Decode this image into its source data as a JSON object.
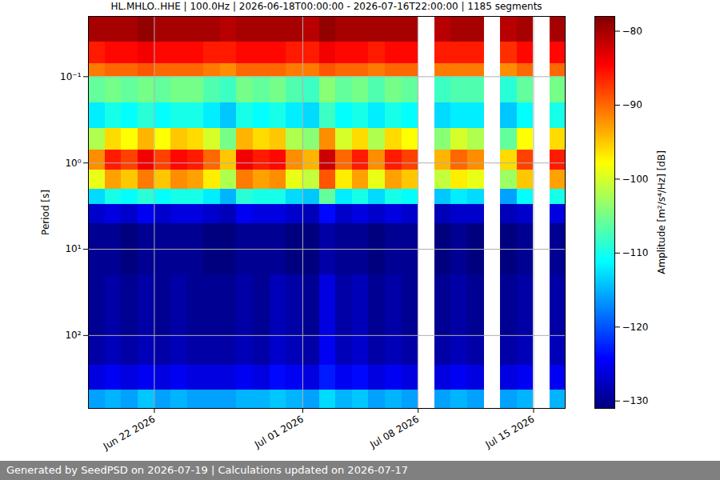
{
  "chart_data": {
    "type": "heatmap",
    "title": "HL.MHLO..HHE | 100.0Hz | 2026-06-18T00:00:00 - 2026-07-16T22:00:00 | 1185 segments",
    "caption": "Generated by SeedPSD on 2026-07-19 | Calculations updated on 2026-07-17",
    "ylabel": "Period [s]",
    "log": "y",
    "grid": true,
    "x": [
      "2026-06-18",
      "2026-06-19",
      "2026-06-20",
      "2026-06-21",
      "2026-06-22",
      "2026-06-23",
      "2026-06-24",
      "2026-06-25",
      "2026-06-26",
      "2026-06-27",
      "2026-06-28",
      "2026-06-29",
      "2026-06-30",
      "2026-07-01",
      "2026-07-02",
      "2026-07-03",
      "2026-07-04",
      "2026-07-05",
      "2026-07-06",
      "2026-07-07",
      "2026-07-08",
      "2026-07-09",
      "2026-07-10",
      "2026-07-11",
      "2026-07-12",
      "2026-07-13",
      "2026-07-14",
      "2026-07-15",
      "2026-07-16"
    ],
    "periods": [
      0.02,
      0.04,
      0.07,
      0.1,
      0.2,
      0.4,
      0.7,
      1.2,
      2,
      3,
      5,
      20,
      100,
      220,
      430,
      700
    ],
    "values": [
      [
        -80,
        -80,
        -80,
        -79,
        -80,
        -80,
        -80,
        -80,
        -81,
        -80,
        -80,
        -80,
        -80,
        -81,
        -79,
        -80,
        -80,
        -80,
        -80,
        -80,
        null,
        -81,
        -80,
        -80,
        null,
        -81,
        -80,
        null,
        -80
      ],
      [
        -86,
        -85,
        -85,
        -84,
        -85,
        -85,
        -85,
        -86,
        -86,
        -85,
        -85,
        -85,
        -86,
        -86,
        -84,
        -85,
        -85,
        -86,
        -85,
        -85,
        null,
        -86,
        -86,
        -86,
        null,
        -87,
        -85,
        null,
        -85
      ],
      [
        -91,
        -90,
        -90,
        -89,
        -90,
        -90,
        -90,
        -91,
        -92,
        -90,
        -90,
        -90,
        -91,
        -91,
        -89,
        -90,
        -90,
        -91,
        -90,
        -90,
        null,
        -91,
        -91,
        -91,
        null,
        -92,
        -90,
        null,
        -90
      ],
      [
        -106,
        -105,
        -106,
        -105,
        -106,
        -105,
        -105,
        -107,
        -108,
        -105,
        -106,
        -105,
        -107,
        -108,
        -104,
        -106,
        -105,
        -107,
        -105,
        -106,
        null,
        -108,
        -107,
        -107,
        null,
        -109,
        -106,
        null,
        -105
      ],
      [
        -112,
        -110,
        -111,
        -109,
        -111,
        -110,
        -110,
        -112,
        -114,
        -110,
        -111,
        -110,
        -112,
        -113,
        -108,
        -111,
        -110,
        -112,
        -110,
        -111,
        null,
        -113,
        -112,
        -112,
        null,
        -114,
        -111,
        null,
        -110
      ],
      [
        -102,
        -96,
        -98,
        -94,
        -98,
        -95,
        -96,
        -100,
        -105,
        -94,
        -96,
        -95,
        -102,
        -104,
        -92,
        -100,
        -96,
        -102,
        -96,
        -98,
        null,
        -104,
        -100,
        -102,
        null,
        -106,
        -98,
        null,
        -96
      ],
      [
        -92,
        -86,
        -88,
        -84,
        -88,
        -85,
        -86,
        -90,
        -95,
        -84,
        -86,
        -85,
        -92,
        -94,
        -82,
        -90,
        -86,
        -92,
        -86,
        -88,
        null,
        -94,
        -90,
        -92,
        null,
        -96,
        -88,
        null,
        -86
      ],
      [
        -99,
        -93,
        -95,
        -91,
        -95,
        -92,
        -93,
        -97,
        -102,
        -91,
        -93,
        -92,
        -99,
        -101,
        -89,
        -97,
        -93,
        -99,
        -93,
        -95,
        null,
        -101,
        -97,
        -99,
        null,
        -103,
        -95,
        null,
        -93
      ],
      [
        -113,
        -110,
        -111,
        -109,
        -111,
        -110,
        -110,
        -112,
        -115,
        -109,
        -110,
        -110,
        -113,
        -114,
        -106,
        -112,
        -110,
        -113,
        -110,
        -111,
        null,
        -114,
        -112,
        -113,
        null,
        -116,
        -111,
        null,
        -110
      ],
      [
        -127,
        -126,
        -127,
        -125,
        -127,
        -126,
        -126,
        -127,
        -128,
        -125,
        -126,
        -126,
        -127,
        -128,
        -124,
        -127,
        -126,
        -127,
        -126,
        -127,
        null,
        -128,
        -127,
        -127,
        null,
        -128,
        -127,
        null,
        -126
      ],
      [
        -130,
        -130,
        -131,
        -130,
        -130,
        -130,
        -130,
        -131,
        -131,
        -130,
        -130,
        -130,
        -131,
        -131,
        -129,
        -130,
        -130,
        -131,
        -130,
        -130,
        null,
        -131,
        -130,
        -131,
        null,
        -131,
        -130,
        null,
        -130
      ],
      [
        -130,
        -129,
        -130,
        -129,
        -130,
        -129,
        -130,
        -130,
        -130,
        -129,
        -130,
        -128,
        -129,
        -130,
        -126,
        -129,
        -128,
        -130,
        -129,
        -130,
        null,
        -130,
        -129,
        -130,
        null,
        -130,
        -129,
        null,
        -129
      ],
      [
        -129,
        -128,
        -129,
        -128,
        -129,
        -128,
        -129,
        -129,
        -129,
        -128,
        -129,
        -127,
        -128,
        -129,
        -125,
        -128,
        -127,
        -129,
        -128,
        -129,
        null,
        -129,
        -128,
        -129,
        null,
        -129,
        -128,
        null,
        -128
      ],
      [
        -126,
        -125,
        -126,
        -125,
        -126,
        -125,
        -126,
        -126,
        -126,
        -125,
        -126,
        -124,
        -125,
        -126,
        -123,
        -125,
        -124,
        -126,
        -125,
        -126,
        null,
        -126,
        -125,
        -126,
        null,
        -126,
        -125,
        null,
        -125
      ],
      [
        -116,
        -115,
        -116,
        -114,
        -116,
        -115,
        -116,
        -116,
        -116,
        -115,
        -115,
        -114,
        -115,
        -116,
        -113,
        -115,
        -114,
        -116,
        -115,
        -116,
        null,
        -116,
        -115,
        -116,
        null,
        -116,
        -115,
        null,
        -115
      ]
    ],
    "xlim": [
      "2026-06-18",
      "2026-07-16T22:00:00"
    ],
    "xticks": [
      {
        "value": "2026-06-22",
        "label": "Jun 22 2026"
      },
      {
        "value": "2026-07-01",
        "label": "Jul 01 2026"
      },
      {
        "value": "2026-07-08",
        "label": "Jul 08 2026"
      },
      {
        "value": "2026-07-15",
        "label": "Jul 15 2026"
      }
    ],
    "ylim": [
      0.02,
      700
    ],
    "yticks": [
      {
        "value": 0.1,
        "label": "10⁻¹"
      },
      {
        "value": 1,
        "label": "10⁰"
      },
      {
        "value": 10,
        "label": "10¹"
      },
      {
        "value": 100,
        "label": "10²"
      }
    ],
    "colorbar": {
      "label": "Amplitude [m²/s⁴/Hz] [dB]",
      "range": [
        -131,
        -78
      ],
      "ticks": [
        -130,
        -120,
        -110,
        -100,
        -90,
        -80
      ]
    }
  }
}
